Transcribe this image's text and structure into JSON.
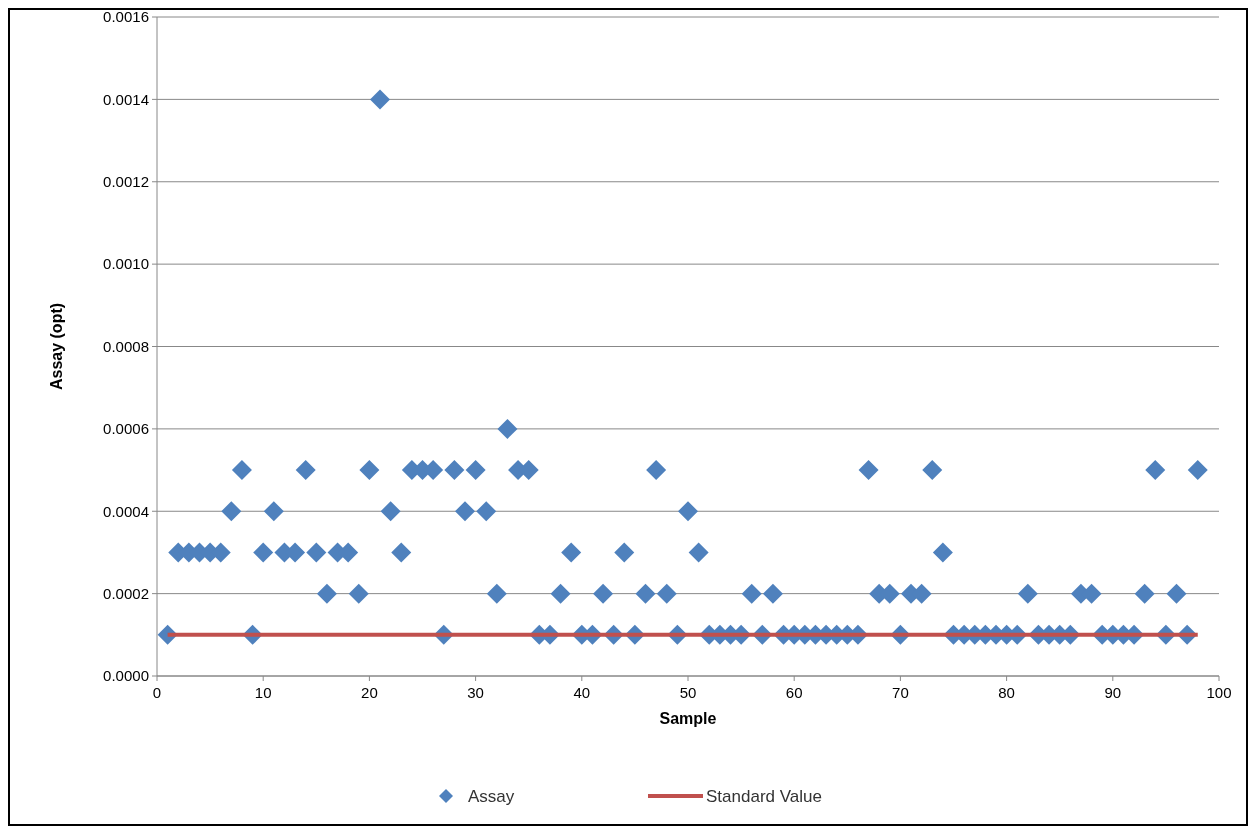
{
  "chart_data": {
    "type": "scatter",
    "xlabel": "Sample",
    "ylabel": "Assay (opt)",
    "xlim": [
      0,
      100
    ],
    "xticks": [
      0,
      10,
      20,
      30,
      40,
      50,
      60,
      70,
      80,
      90,
      100
    ],
    "ylim": [
      0,
      0.0016
    ],
    "yticks": [
      {
        "value": 0,
        "label": "0.0000"
      },
      {
        "value": 0.0002,
        "label": "0.0002"
      },
      {
        "value": 0.0004,
        "label": "0.0004"
      },
      {
        "value": 0.0006,
        "label": "0.0006"
      },
      {
        "value": 0.0008,
        "label": "0.0008"
      },
      {
        "value": 0.001,
        "label": "0.0010"
      },
      {
        "value": 0.0012,
        "label": "0.0012"
      },
      {
        "value": 0.0014,
        "label": "0.0014"
      },
      {
        "value": 0.0016,
        "label": "0.0016"
      }
    ],
    "grid": "y",
    "legend": "bottom",
    "series": [
      {
        "name": "Assay",
        "marker": "diamond",
        "color": "#4f81bd",
        "x": [
          1,
          2,
          3,
          4,
          5,
          6,
          7,
          8,
          9,
          10,
          11,
          12,
          13,
          14,
          15,
          16,
          17,
          18,
          19,
          20,
          21,
          22,
          23,
          24,
          25,
          26,
          27,
          28,
          29,
          30,
          31,
          32,
          33,
          34,
          35,
          36,
          37,
          38,
          39,
          40,
          41,
          42,
          43,
          44,
          45,
          46,
          47,
          48,
          49,
          50,
          51,
          52,
          53,
          54,
          55,
          56,
          57,
          58,
          59,
          60,
          61,
          62,
          63,
          64,
          65,
          66,
          67,
          68,
          69,
          70,
          71,
          72,
          73,
          74,
          75,
          76,
          77,
          78,
          79,
          80,
          81,
          82,
          83,
          84,
          85,
          86,
          87,
          88,
          89,
          90,
          91,
          92,
          93,
          94,
          95,
          96,
          97,
          98
        ],
        "values": [
          0.0001,
          0.0003,
          0.0003,
          0.0003,
          0.0003,
          0.0003,
          0.0004,
          0.0005,
          0.0001,
          0.0003,
          0.0004,
          0.0003,
          0.0003,
          0.0005,
          0.0003,
          0.0002,
          0.0003,
          0.0003,
          0.0002,
          0.0005,
          0.0014,
          0.0004,
          0.0003,
          0.0005,
          0.0005,
          0.0005,
          0.0001,
          0.0005,
          0.0004,
          0.0005,
          0.0004,
          0.0002,
          0.0006,
          0.0005,
          0.0005,
          0.0001,
          0.0001,
          0.0002,
          0.0003,
          0.0001,
          0.0001,
          0.0002,
          0.0001,
          0.0003,
          0.0001,
          0.0002,
          0.0005,
          0.0002,
          0.0001,
          0.0004,
          0.0003,
          0.0001,
          0.0001,
          0.0001,
          0.0001,
          0.0002,
          0.0001,
          0.0002,
          0.0001,
          0.0001,
          0.0001,
          0.0001,
          0.0001,
          0.0001,
          0.0001,
          0.0001,
          0.0005,
          0.0002,
          0.0002,
          0.0001,
          0.0002,
          0.0002,
          0.0005,
          0.0003,
          0.0001,
          0.0001,
          0.0001,
          0.0001,
          0.0001,
          0.0001,
          0.0001,
          0.0002,
          0.0001,
          0.0001,
          0.0001,
          0.0001,
          0.0002,
          0.0002,
          0.0001,
          0.0001,
          0.0001,
          0.0001,
          0.0002,
          0.0005,
          0.0001,
          0.0002,
          0.0001,
          0.0005
        ]
      },
      {
        "name": "Standard Value",
        "type": "line",
        "color": "#c0504d",
        "x": [
          1,
          98
        ],
        "values": [
          0.0001,
          0.0001
        ]
      }
    ]
  }
}
